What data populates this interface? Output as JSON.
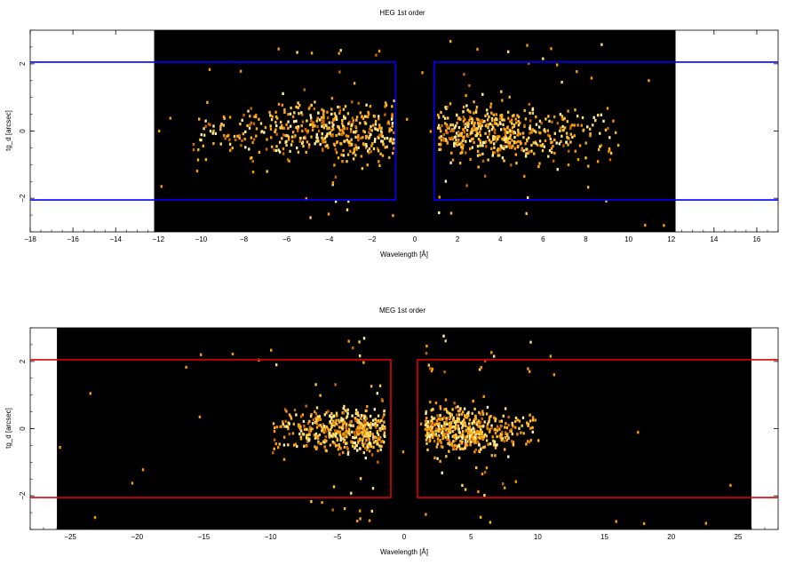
{
  "chart_data": [
    {
      "type": "heatmap",
      "title": "HEG 1st order",
      "xlabel": "Wavelength [Å]",
      "ylabel": "tg_d [arcsec]",
      "xlim": [
        -18,
        17
      ],
      "ylim": [
        -3,
        3
      ],
      "xticks": [
        -18,
        -16,
        -14,
        -12,
        -10,
        -8,
        -6,
        -4,
        -2,
        0,
        2,
        4,
        6,
        8,
        10,
        12,
        14,
        16
      ],
      "yticks": [
        -2,
        0,
        2
      ],
      "detector_extent": [
        -12.2,
        12.2
      ],
      "region_color": "#0000ff",
      "regions": [
        {
          "x": [
            -18,
            -0.9
          ],
          "y": [
            -2.05,
            2.05
          ]
        },
        {
          "x": [
            0.9,
            17
          ],
          "y": [
            -2.05,
            2.05
          ]
        }
      ],
      "event_clusters": [
        {
          "x_range": [
            -10.5,
            -1.0
          ],
          "center": -3.0,
          "density": 0.55,
          "y_spread": 0.55
        },
        {
          "x_range": [
            1.0,
            9.5
          ],
          "center": 2.8,
          "density": 0.6,
          "y_spread": 0.55
        }
      ]
    },
    {
      "type": "heatmap",
      "title": "MEG 1st order",
      "xlabel": "Wavelength [Å]",
      "ylabel": "tg_d [arcsec]",
      "xlim": [
        -28,
        28
      ],
      "ylim": [
        -3,
        3
      ],
      "xticks": [
        -25,
        -20,
        -15,
        -10,
        -5,
        0,
        5,
        10,
        15,
        20,
        25
      ],
      "yticks": [
        -2,
        0,
        2
      ],
      "detector_extent": [
        -26,
        26
      ],
      "region_color": "#dd0000",
      "regions": [
        {
          "x": [
            -28,
            -1.0
          ],
          "y": [
            -2.05,
            2.05
          ]
        },
        {
          "x": [
            1.0,
            28
          ],
          "y": [
            -2.05,
            2.05
          ]
        }
      ],
      "event_clusters": [
        {
          "x_range": [
            -10,
            -1.5
          ],
          "center": -3.5,
          "density": 0.55,
          "y_spread": 0.45
        },
        {
          "x_range": [
            1.5,
            10
          ],
          "center": 3.5,
          "density": 0.6,
          "y_spread": 0.45
        }
      ]
    }
  ]
}
